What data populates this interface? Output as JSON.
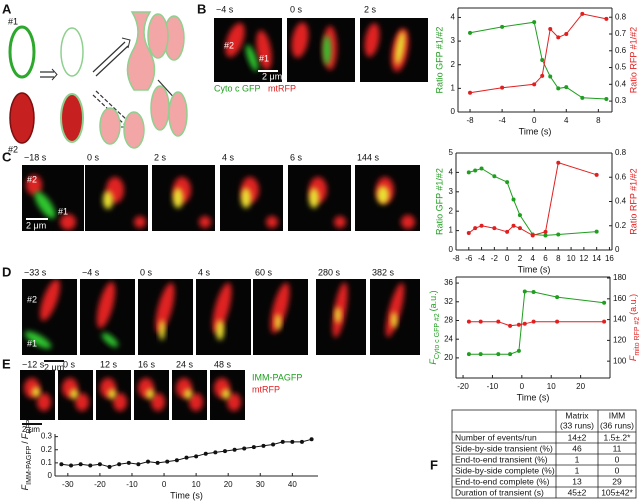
{
  "panel_labels": [
    "A",
    "B",
    "C",
    "D",
    "E",
    "F"
  ],
  "panel_a": {
    "labels": [
      "#1",
      "#2"
    ]
  },
  "panel_b": {
    "times": [
      "−4 s",
      "0 s",
      "2 s"
    ],
    "markers": [
      "#2",
      "#1"
    ],
    "scale": "2 μm",
    "channels": [
      "Cyto c GFP",
      "mtRFP"
    ]
  },
  "panel_c": {
    "times": [
      "−18 s",
      "0 s",
      "2 s",
      "4 s",
      "6 s",
      "144 s"
    ],
    "markers": [
      "#2",
      "#1"
    ],
    "scale": "2 μm"
  },
  "panel_d": {
    "times": [
      "−33 s",
      "−4 s",
      "0 s",
      "4 s",
      "60 s",
      "280 s",
      "382 s"
    ],
    "markers": [
      "#2",
      "#1"
    ],
    "scale": "2 μm"
  },
  "panel_e": {
    "times": [
      "−12 s",
      "0 s",
      "12 s",
      "16 s",
      "24 s",
      "48 s"
    ],
    "scale": "2 μm",
    "channels": [
      "IMM-PAGFP",
      "mtRFP"
    ]
  },
  "chart_data": [
    {
      "type": "line",
      "x_label": "Time (s)",
      "y_label": "Ratio GFP #1/#2",
      "y2_label": "Ratio RFP #1/#2",
      "x": [
        -8,
        -4,
        0,
        1,
        2,
        3,
        4,
        6,
        9
      ],
      "series": [
        {
          "color": "#1f9e1f",
          "values": [
            3.35,
            3.6,
            3.8,
            2.2,
            1.5,
            1.0,
            1.05,
            0.6,
            0.55
          ]
        },
        {
          "color": "#e02020",
          "axis": "y2",
          "values": [
            0.35,
            0.38,
            0.4,
            0.45,
            0.73,
            0.68,
            0.7,
            0.82,
            0.79
          ]
        }
      ],
      "xlim": [
        -9.5,
        9.7
      ],
      "xticks": [
        -8,
        -4,
        0,
        4,
        8
      ],
      "ylim": [
        0,
        4.4
      ],
      "yticks": [
        0,
        1,
        2,
        3,
        4
      ],
      "y2lim": [
        0.235,
        0.855
      ],
      "y2ticks": [
        0.3,
        0.4,
        0.5,
        0.6,
        0.7,
        0.8
      ]
    },
    {
      "type": "line",
      "x_label": "Time (s)",
      "y_label": "Ratio GFP #1/#2",
      "y2_label": "Ratio RFP #1/#2",
      "x": [
        -6,
        -5,
        -4,
        -2,
        0,
        1,
        2,
        4,
        6,
        8,
        14
      ],
      "series": [
        {
          "color": "#1f9e1f",
          "values": [
            4.0,
            4.1,
            4.2,
            3.8,
            3.5,
            2.6,
            1.8,
            0.8,
            0.75,
            0.8,
            0.95
          ]
        },
        {
          "color": "#e02020",
          "axis": "y2",
          "values": [
            0.14,
            0.18,
            0.2,
            0.18,
            0.15,
            0.2,
            0.18,
            0.12,
            0.15,
            0.72,
            0.62
          ]
        }
      ],
      "xlim": [
        -8,
        16.4
      ],
      "xticks": [
        -8,
        -6,
        -4,
        -2,
        0,
        2,
        4,
        6,
        8,
        10,
        12,
        14,
        16
      ],
      "ylim": [
        0,
        5
      ],
      "yticks": [
        0,
        1,
        2,
        3,
        4,
        5
      ],
      "y2lim": [
        0,
        0.8
      ],
      "y2ticks": [
        0,
        0.2,
        0.4,
        0.6,
        0.8
      ]
    },
    {
      "type": "line",
      "x_label": "Time (s)",
      "y_label": [
        {
          "text": "F",
          "italic": true
        },
        {
          "text": "Cyto c GFP #2",
          "sub": true
        },
        {
          "text": "(a.u.)"
        }
      ],
      "y2_label": [
        {
          "text": "F",
          "italic": true
        },
        {
          "text": "mito RFP #2",
          "sub": true
        },
        {
          "text": "(a.u.)"
        }
      ],
      "x": [
        -18,
        -14,
        -8,
        -4,
        -1,
        1,
        4,
        12,
        28
      ],
      "series": [
        {
          "color": "#1f9e1f",
          "values": [
            20.8,
            20.8,
            20.8,
            20.8,
            21.5,
            34.2,
            34.1,
            33,
            31.8
          ]
        },
        {
          "color": "#e02020",
          "axis": "y2",
          "values": [
            138,
            138,
            138,
            134,
            135,
            136,
            138,
            138,
            138
          ]
        }
      ],
      "xlim": [
        -22.4,
        30
      ],
      "xticks": [
        -20,
        -10,
        0,
        10,
        20
      ],
      "ylim": [
        15.7,
        37.3
      ],
      "yticks": [
        20,
        24,
        28,
        32,
        36
      ],
      "y2lim": [
        83.8,
        181
      ],
      "y2ticks": [
        100,
        120,
        140,
        160,
        180
      ]
    },
    {
      "type": "line",
      "x_label": "Time (s)",
      "y_label": [
        {
          "text": "F",
          "italic": true
        },
        {
          "text": "IMM-PAGFP",
          "sub": true
        },
        {
          "text": "/"
        },
        {
          "text": "F",
          "italic": true
        },
        {
          "text": "RFP",
          "sub": true
        }
      ],
      "x": [
        -32,
        -29,
        -26,
        -23,
        -20,
        -17,
        -14,
        -11,
        -8,
        -5,
        -2,
        1,
        4,
        7,
        10,
        13,
        16,
        19,
        22,
        25,
        28,
        31,
        34,
        37,
        40,
        43,
        46
      ],
      "series": [
        {
          "color": "#111111",
          "values": [
            0.09,
            0.08,
            0.09,
            0.08,
            0.09,
            0.07,
            0.09,
            0.1,
            0.09,
            0.11,
            0.1,
            0.11,
            0.12,
            0.14,
            0.15,
            0.17,
            0.18,
            0.19,
            0.2,
            0.21,
            0.22,
            0.23,
            0.24,
            0.26,
            0.26,
            0.26,
            0.28
          ]
        }
      ],
      "xlim": [
        -34,
        48
      ],
      "xticks": [
        -30,
        -20,
        -10,
        0,
        10,
        20,
        30,
        40
      ],
      "ylim": [
        0,
        0.32
      ],
      "yticks": [
        0,
        0.1,
        0.2,
        0.3
      ]
    }
  ],
  "table": {
    "header": [
      [
        "Matrix",
        "(33 runs)"
      ],
      [
        "IMM",
        "(36 runs)"
      ]
    ],
    "rows": [
      [
        "Number of events/run",
        "14±2",
        "1.5±.2*"
      ],
      [
        "Side-by-side transient (%)",
        "46",
        "11"
      ],
      [
        "End-to-end transient (%)",
        "1",
        "0"
      ],
      [
        "Side-by-side complete (%)",
        "1",
        "0"
      ],
      [
        "End-to-end complete (%)",
        "13",
        "29"
      ],
      [
        "Duration of transient (s)",
        "45±2",
        "105±42*"
      ]
    ]
  }
}
